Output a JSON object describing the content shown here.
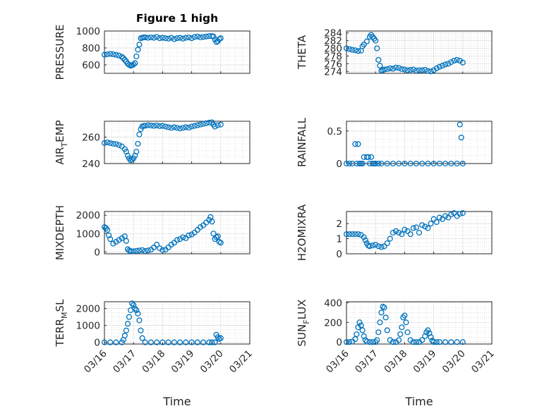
{
  "figure_title": "Figure 1 high",
  "chart_data": [
    {
      "type": "scatter",
      "ylabel": "PRESSURE",
      "xlabel": "",
      "ylim": [
        500,
        1000
      ],
      "yticks": [
        600,
        800,
        1000
      ],
      "xticks": [
        "03/16",
        "03/17",
        "03/18",
        "03/19",
        "03/20",
        "03/21"
      ],
      "xlim": [
        0,
        5
      ],
      "grid": true,
      "title": "Figure 1 high",
      "x": [
        0,
        0.1,
        0.2,
        0.3,
        0.4,
        0.5,
        0.6,
        0.65,
        0.7,
        0.75,
        0.8,
        0.85,
        0.9,
        0.95,
        1.0,
        1.05,
        1.1,
        1.15,
        1.2,
        1.25,
        1.3,
        1.35,
        1.4,
        1.5,
        1.6,
        1.7,
        1.8,
        1.9,
        2.0,
        2.1,
        2.2,
        2.3,
        2.4,
        2.5,
        2.6,
        2.7,
        2.8,
        2.9,
        3.0,
        3.1,
        3.2,
        3.3,
        3.4,
        3.5,
        3.6,
        3.7,
        3.75,
        3.8,
        3.85,
        3.9,
        3.95,
        4.0
      ],
      "y": [
        720,
        725,
        730,
        725,
        718,
        710,
        695,
        680,
        660,
        640,
        615,
        600,
        590,
        595,
        605,
        620,
        700,
        780,
        840,
        915,
        920,
        925,
        925,
        920,
        925,
        920,
        930,
        915,
        920,
        915,
        910,
        920,
        905,
        915,
        920,
        910,
        920,
        925,
        915,
        930,
        935,
        925,
        930,
        935,
        940,
        940,
        935,
        900,
        870,
        880,
        905,
        915
      ]
    },
    {
      "type": "scatter",
      "ylabel": "THETA",
      "xlabel": "",
      "ylim": [
        273.5,
        284.5
      ],
      "yticks": [
        274,
        276,
        278,
        280,
        282,
        284
      ],
      "xticks": [
        "03/16",
        "03/17",
        "03/18",
        "03/19",
        "03/20",
        "03/21"
      ],
      "xlim": [
        0,
        5
      ],
      "grid": true,
      "x": [
        0,
        0.1,
        0.2,
        0.3,
        0.4,
        0.5,
        0.55,
        0.6,
        0.7,
        0.8,
        0.85,
        0.9,
        0.95,
        1.0,
        1.05,
        1.1,
        1.15,
        1.2,
        1.25,
        1.3,
        1.4,
        1.5,
        1.6,
        1.7,
        1.8,
        1.9,
        2.0,
        2.1,
        2.2,
        2.3,
        2.4,
        2.5,
        2.6,
        2.7,
        2.8,
        2.9,
        3.0,
        3.1,
        3.2,
        3.3,
        3.4,
        3.5,
        3.6,
        3.7,
        3.8,
        3.9,
        4.0
      ],
      "y": [
        280,
        279.8,
        279.6,
        279.5,
        279.3,
        279.4,
        280.5,
        281,
        281.8,
        283,
        283.5,
        283,
        282.5,
        282,
        280,
        277,
        275.5,
        274.2,
        274.3,
        274.5,
        274.6,
        274.8,
        274.7,
        275,
        274.9,
        274.6,
        274.5,
        274.3,
        274.4,
        274.5,
        274.2,
        274.3,
        274.3,
        274.4,
        274.1,
        274.0,
        274.3,
        274.8,
        275.2,
        275.5,
        275.8,
        276,
        276.4,
        276.8,
        277,
        276.8,
        276.3
      ]
    },
    {
      "type": "scatter",
      "ylabel": "AIR_TEMP",
      "xlabel": "",
      "ylim": [
        240,
        272
      ],
      "yticks": [
        240,
        260
      ],
      "xticks": [
        "03/16",
        "03/17",
        "03/18",
        "03/19",
        "03/20",
        "03/21"
      ],
      "xlim": [
        0,
        5
      ],
      "grid": true,
      "x": [
        0,
        0.1,
        0.2,
        0.3,
        0.4,
        0.5,
        0.6,
        0.7,
        0.75,
        0.8,
        0.85,
        0.9,
        0.95,
        1.0,
        1.05,
        1.1,
        1.15,
        1.2,
        1.25,
        1.3,
        1.35,
        1.4,
        1.5,
        1.6,
        1.7,
        1.8,
        1.9,
        2.0,
        2.1,
        2.2,
        2.3,
        2.4,
        2.5,
        2.6,
        2.7,
        2.8,
        2.9,
        3.0,
        3.1,
        3.2,
        3.3,
        3.4,
        3.5,
        3.6,
        3.7,
        3.75,
        3.8,
        3.9,
        4.0
      ],
      "y": [
        255.5,
        256,
        255.5,
        255,
        254.8,
        254,
        253,
        251,
        249,
        246,
        244,
        242.5,
        243,
        244,
        246,
        249,
        255,
        262,
        266,
        268,
        268.5,
        268.6,
        269,
        268.8,
        268.5,
        268.8,
        268.3,
        268.5,
        268,
        267.5,
        267,
        267.5,
        267,
        266.5,
        267,
        267.5,
        267.2,
        268,
        268.5,
        269,
        269.5,
        270,
        270.5,
        271,
        271.2,
        269.5,
        268,
        269,
        269.5
      ]
    },
    {
      "type": "scatter",
      "ylabel": "RAINFALL",
      "xlabel": "",
      "ylim": [
        0,
        0.65
      ],
      "yticks": [
        0,
        0.5
      ],
      "xticks": [
        "03/16",
        "03/17",
        "03/18",
        "03/19",
        "03/20",
        "03/21"
      ],
      "xlim": [
        0,
        5
      ],
      "grid": true,
      "x": [
        0,
        0.1,
        0.2,
        0.3,
        0.35,
        0.4,
        0.45,
        0.5,
        0.55,
        0.6,
        0.7,
        0.75,
        0.8,
        0.85,
        0.9,
        0.95,
        1.0,
        1.1,
        1.2,
        1.4,
        1.6,
        1.8,
        2.0,
        2.2,
        2.4,
        2.6,
        2.8,
        3.0,
        3.2,
        3.4,
        3.6,
        3.8,
        3.9,
        3.95,
        4.0
      ],
      "y": [
        0,
        0,
        0,
        0.3,
        0,
        0.3,
        0,
        0,
        0,
        0.1,
        0.1,
        0.1,
        0,
        0.1,
        0,
        0,
        0,
        0,
        0,
        0,
        0,
        0,
        0,
        0,
        0,
        0,
        0,
        0,
        0,
        0,
        0,
        0,
        0.6,
        0.4,
        0
      ]
    },
    {
      "type": "scatter",
      "ylabel": "MIXDEPTH",
      "xlabel": "",
      "ylim": [
        -100,
        2200
      ],
      "yticks": [
        0,
        1000,
        2000
      ],
      "xticks": [
        "03/16",
        "03/17",
        "03/18",
        "03/19",
        "03/20",
        "03/21"
      ],
      "xlim": [
        0,
        5
      ],
      "grid": true,
      "x": [
        0,
        0.05,
        0.1,
        0.15,
        0.2,
        0.3,
        0.4,
        0.5,
        0.6,
        0.7,
        0.75,
        0.8,
        0.85,
        0.9,
        1.0,
        1.1,
        1.2,
        1.3,
        1.4,
        1.5,
        1.6,
        1.7,
        1.8,
        1.9,
        2.0,
        2.1,
        2.2,
        2.3,
        2.4,
        2.5,
        2.6,
        2.7,
        2.8,
        2.9,
        3.0,
        3.1,
        3.2,
        3.3,
        3.4,
        3.5,
        3.6,
        3.65,
        3.7,
        3.75,
        3.8,
        3.85,
        3.9,
        3.95,
        4.0
      ],
      "y": [
        1350,
        1300,
        1200,
        900,
        700,
        450,
        550,
        650,
        750,
        850,
        600,
        150,
        80,
        50,
        30,
        60,
        80,
        100,
        50,
        80,
        120,
        250,
        400,
        200,
        100,
        120,
        250,
        400,
        500,
        650,
        700,
        800,
        750,
        900,
        950,
        1050,
        1200,
        1350,
        1450,
        1600,
        1750,
        1900,
        1650,
        1000,
        700,
        800,
        850,
        550,
        500
      ]
    },
    {
      "type": "scatter",
      "ylabel": "H2OMIXRA",
      "xlabel": "",
      "ylim": [
        0,
        2.8
      ],
      "yticks": [
        0,
        1,
        2
      ],
      "xticks": [
        "03/16",
        "03/17",
        "03/18",
        "03/19",
        "03/20",
        "03/21"
      ],
      "xlim": [
        0,
        5
      ],
      "grid": true,
      "x": [
        0,
        0.1,
        0.2,
        0.3,
        0.4,
        0.5,
        0.6,
        0.65,
        0.7,
        0.75,
        0.8,
        0.9,
        1.0,
        1.1,
        1.2,
        1.3,
        1.4,
        1.5,
        1.6,
        1.7,
        1.8,
        1.9,
        2.0,
        2.1,
        2.2,
        2.3,
        2.4,
        2.5,
        2.6,
        2.7,
        2.8,
        2.9,
        3.0,
        3.1,
        3.2,
        3.3,
        3.4,
        3.5,
        3.6,
        3.7,
        3.8,
        3.9,
        4.0
      ],
      "y": [
        1.3,
        1.3,
        1.3,
        1.3,
        1.3,
        1.25,
        1.1,
        0.9,
        0.7,
        0.55,
        0.5,
        0.55,
        0.6,
        0.5,
        0.45,
        0.5,
        0.7,
        1.0,
        1.4,
        1.5,
        1.4,
        1.3,
        1.6,
        1.5,
        1.3,
        1.7,
        1.75,
        1.4,
        1.9,
        1.8,
        1.7,
        2.0,
        2.3,
        2.1,
        2.4,
        2.3,
        2.5,
        2.4,
        2.6,
        2.7,
        2.5,
        2.65,
        2.7
      ]
    },
    {
      "type": "scatter",
      "ylabel": "TERR_MSL",
      "xlabel": "Time",
      "ylim": [
        -100,
        2400
      ],
      "yticks": [
        0,
        1000,
        2000
      ],
      "xticks": [
        "03/16",
        "03/17",
        "03/18",
        "03/19",
        "03/20",
        "03/21"
      ],
      "xlim": [
        0,
        5
      ],
      "grid": true,
      "x": [
        0,
        0.2,
        0.4,
        0.6,
        0.65,
        0.7,
        0.75,
        0.8,
        0.85,
        0.9,
        0.95,
        1.0,
        1.05,
        1.1,
        1.15,
        1.2,
        1.25,
        1.3,
        1.4,
        1.6,
        1.8,
        2.0,
        2.2,
        2.4,
        2.6,
        2.8,
        3.0,
        3.2,
        3.4,
        3.6,
        3.7,
        3.8,
        3.85,
        3.9,
        3.95,
        4.0
      ],
      "y": [
        0,
        0,
        0,
        0,
        150,
        400,
        700,
        1100,
        1500,
        1900,
        2300,
        2200,
        2000,
        1900,
        1700,
        1300,
        700,
        250,
        0,
        0,
        0,
        0,
        0,
        0,
        0,
        0,
        0,
        0,
        0,
        0,
        0,
        0,
        450,
        300,
        200,
        250
      ]
    },
    {
      "type": "scatter",
      "ylabel": "SUN_FLUX",
      "xlabel": "Time",
      "ylim": [
        -20,
        410
      ],
      "yticks": [
        0,
        200,
        400
      ],
      "xticks": [
        "03/16",
        "03/17",
        "03/18",
        "03/19",
        "03/20",
        "03/21"
      ],
      "xlim": [
        0,
        5
      ],
      "grid": true,
      "x": [
        0,
        0.1,
        0.2,
        0.3,
        0.35,
        0.4,
        0.45,
        0.5,
        0.55,
        0.6,
        0.65,
        0.7,
        0.8,
        0.9,
        1.0,
        1.05,
        1.1,
        1.15,
        1.2,
        1.25,
        1.3,
        1.35,
        1.4,
        1.5,
        1.6,
        1.7,
        1.8,
        1.85,
        1.9,
        1.95,
        2.0,
        2.05,
        2.1,
        2.2,
        2.3,
        2.4,
        2.5,
        2.6,
        2.7,
        2.75,
        2.8,
        2.85,
        2.9,
        2.95,
        3.0,
        3.1,
        3.2,
        3.4,
        3.6,
        3.8,
        4.0
      ],
      "y": [
        0,
        0,
        5,
        30,
        80,
        150,
        200,
        170,
        120,
        60,
        20,
        5,
        0,
        0,
        0,
        20,
        100,
        200,
        300,
        360,
        350,
        250,
        120,
        20,
        0,
        0,
        20,
        80,
        150,
        250,
        270,
        200,
        100,
        20,
        0,
        0,
        0,
        20,
        60,
        100,
        120,
        90,
        50,
        15,
        0,
        0,
        0,
        0,
        0,
        0,
        0
      ]
    }
  ]
}
